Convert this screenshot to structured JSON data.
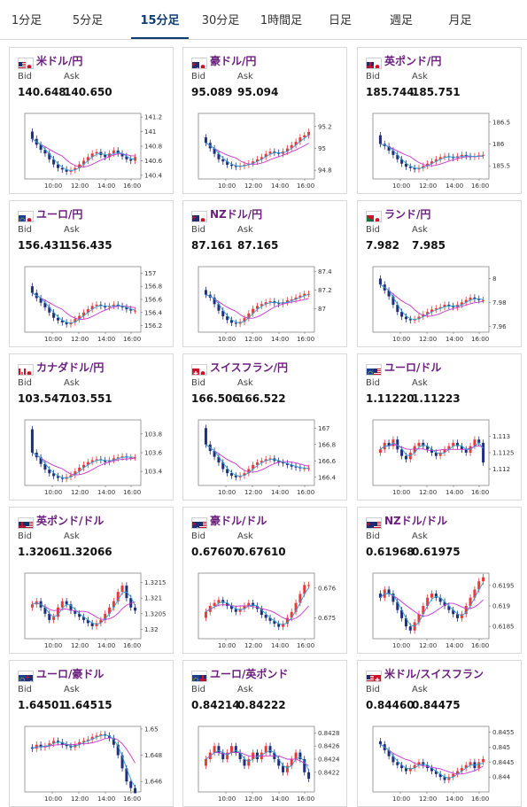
{
  "tabs": [
    {
      "label": "1分足",
      "active": false
    },
    {
      "label": "5分足",
      "active": false
    },
    {
      "label": "15分足",
      "active": true
    },
    {
      "label": "30分足",
      "active": false
    },
    {
      "label": "1時間足",
      "active": false
    },
    {
      "label": "日足",
      "active": false
    },
    {
      "label": "週足",
      "active": false
    },
    {
      "label": "月足",
      "active": false
    }
  ],
  "labels": {
    "bid": "Bid",
    "ask": "Ask"
  },
  "x_ticks": [
    "10:00",
    "12:00",
    "14:00",
    "16:00"
  ],
  "colors": {
    "up": "#e83a3a",
    "down": "#1f2f7a",
    "ma_long": "#cc33cc",
    "ma_short": "#2a9fd6",
    "title": "#6b1e7e"
  },
  "cards": [
    {
      "name": "米ドル/円",
      "flag": "us-jp",
      "bid": "140.648",
      "ask": "140.650",
      "chart_data": {
        "type": "candlestick",
        "ylim": [
          140.35,
          141.25
        ],
        "y_ticks": [
          "141.2",
          "141",
          "140.8",
          "140.6",
          "140.4"
        ],
        "y_tick_values": [
          141.2,
          141.0,
          140.8,
          140.6,
          140.4
        ],
        "close": [
          140.9,
          140.82,
          140.75,
          140.7,
          140.62,
          140.55,
          140.5,
          140.48,
          140.45,
          140.47,
          140.5,
          140.55,
          140.6,
          140.65,
          140.7,
          140.72,
          140.68,
          140.65,
          140.7,
          140.74,
          140.7,
          140.66,
          140.62,
          140.6,
          140.65
        ],
        "open_first": 141.0
      }
    },
    {
      "name": "豪ドル/円",
      "flag": "au-jp",
      "bid": "95.089",
      "ask": "95.094",
      "chart_data": {
        "type": "candlestick",
        "ylim": [
          94.72,
          95.32
        ],
        "y_ticks": [
          "95.2",
          "95",
          "94.8"
        ],
        "y_tick_values": [
          95.2,
          95.0,
          94.8
        ],
        "close": [
          95.05,
          95.0,
          94.95,
          94.9,
          94.88,
          94.85,
          94.84,
          94.83,
          94.84,
          94.85,
          94.86,
          94.88,
          94.9,
          94.92,
          94.95,
          94.97,
          94.96,
          94.95,
          94.97,
          95.0,
          95.03,
          95.06,
          95.1,
          95.12,
          95.15
        ],
        "open_first": 95.1
      }
    },
    {
      "name": "英ポンド/円",
      "flag": "gb-jp",
      "bid": "185.744",
      "ask": "185.751",
      "chart_data": {
        "type": "candlestick",
        "ylim": [
          185.2,
          186.7
        ],
        "y_ticks": [
          "186.5",
          "186",
          "185.5"
        ],
        "y_tick_values": [
          186.5,
          186.0,
          185.5
        ],
        "close": [
          186.0,
          185.95,
          185.85,
          185.75,
          185.65,
          185.55,
          185.48,
          185.45,
          185.42,
          185.45,
          185.5,
          185.55,
          185.6,
          185.65,
          185.7,
          185.72,
          185.7,
          185.68,
          185.72,
          185.75,
          185.72,
          185.7,
          185.72,
          185.74,
          185.75
        ],
        "open_first": 186.2
      }
    },
    {
      "name": "ユーロ/円",
      "flag": "eu-jp",
      "bid": "156.431",
      "ask": "156.435",
      "chart_data": {
        "type": "candlestick",
        "ylim": [
          156.1,
          157.1
        ],
        "y_ticks": [
          "157",
          "156.8",
          "156.6",
          "156.4",
          "156.2"
        ],
        "y_tick_values": [
          157.0,
          156.8,
          156.6,
          156.4,
          156.2
        ],
        "close": [
          156.7,
          156.62,
          156.55,
          156.48,
          156.4,
          156.32,
          156.28,
          156.25,
          156.22,
          156.25,
          156.3,
          156.35,
          156.4,
          156.45,
          156.5,
          156.52,
          156.5,
          156.48,
          156.5,
          156.52,
          156.5,
          156.48,
          156.45,
          156.43,
          156.43
        ],
        "open_first": 156.8
      }
    },
    {
      "name": "NZドル/円",
      "flag": "nz-jp",
      "bid": "87.161",
      "ask": "87.165",
      "chart_data": {
        "type": "candlestick",
        "ylim": [
          86.75,
          87.45
        ],
        "y_ticks": [
          "87.4",
          "87.2",
          "87"
        ],
        "y_tick_values": [
          87.4,
          87.2,
          87.0
        ],
        "close": [
          87.15,
          87.12,
          87.05,
          86.98,
          86.92,
          86.88,
          86.85,
          86.84,
          86.86,
          86.9,
          86.95,
          87.0,
          87.03,
          87.05,
          87.07,
          87.08,
          87.06,
          87.05,
          87.07,
          87.09,
          87.1,
          87.12,
          87.14,
          87.16,
          87.16
        ],
        "open_first": 87.2
      }
    },
    {
      "name": "ランド/円",
      "flag": "za-jp",
      "bid": "7.982",
      "ask": "7.985",
      "chart_data": {
        "type": "candlestick",
        "ylim": [
          7.955,
          8.01
        ],
        "y_ticks": [
          "8",
          "7.98",
          "7.96"
        ],
        "y_tick_values": [
          8.0,
          7.98,
          7.96
        ],
        "close": [
          7.995,
          7.99,
          7.985,
          7.978,
          7.972,
          7.968,
          7.966,
          7.965,
          7.966,
          7.968,
          7.97,
          7.972,
          7.974,
          7.975,
          7.976,
          7.978,
          7.977,
          7.976,
          7.978,
          7.98,
          7.982,
          7.984,
          7.983,
          7.982,
          7.982
        ],
        "open_first": 8.0
      }
    },
    {
      "name": "カナダドル/円",
      "flag": "ca-jp",
      "bid": "103.547",
      "ask": "103.551",
      "chart_data": {
        "type": "candlestick",
        "ylim": [
          103.25,
          103.95
        ],
        "y_ticks": [
          "103.8",
          "103.6",
          "103.4"
        ],
        "y_tick_values": [
          103.8,
          103.6,
          103.4
        ],
        "close": [
          103.6,
          103.55,
          103.48,
          103.42,
          103.38,
          103.35,
          103.33,
          103.32,
          103.34,
          103.36,
          103.4,
          103.44,
          103.47,
          103.5,
          103.52,
          103.53,
          103.52,
          103.5,
          103.52,
          103.54,
          103.55,
          103.56,
          103.55,
          103.55,
          103.55
        ],
        "open_first": 103.85
      }
    },
    {
      "name": "スイスフラン/円",
      "flag": "ch-jp",
      "bid": "166.506",
      "ask": "166.522",
      "chart_data": {
        "type": "candlestick",
        "ylim": [
          166.3,
          167.1
        ],
        "y_ticks": [
          "167",
          "166.8",
          "166.6",
          "166.4"
        ],
        "y_tick_values": [
          167.0,
          166.8,
          166.6,
          166.4
        ],
        "close": [
          166.8,
          166.72,
          166.65,
          166.58,
          166.5,
          166.45,
          166.42,
          166.4,
          166.42,
          166.45,
          166.5,
          166.55,
          166.58,
          166.6,
          166.62,
          166.63,
          166.6,
          166.58,
          166.57,
          166.55,
          166.53,
          166.52,
          166.51,
          166.51,
          166.51
        ],
        "open_first": 167.0
      }
    },
    {
      "name": "ユーロ/ドル",
      "flag": "eu-us",
      "bid": "1.11220",
      "ask": "1.11223",
      "chart_data": {
        "type": "candlestick",
        "ylim": [
          1.1115,
          1.1135
        ],
        "y_ticks": [
          "1.113",
          "1.1125",
          "1.112"
        ],
        "y_tick_values": [
          1.113,
          1.1125,
          1.112
        ],
        "close": [
          1.1126,
          1.1128,
          1.1127,
          1.1129,
          1.1126,
          1.1124,
          1.1123,
          1.1125,
          1.1127,
          1.1128,
          1.1127,
          1.1126,
          1.1125,
          1.1124,
          1.1125,
          1.1126,
          1.1127,
          1.1128,
          1.1127,
          1.1126,
          1.1125,
          1.1127,
          1.1129,
          1.1128,
          1.1122
        ],
        "open_first": 1.1125
      }
    },
    {
      "name": "英ポンド/ドル",
      "flag": "gb-us",
      "bid": "1.32061",
      "ask": "1.32066",
      "chart_data": {
        "type": "candlestick",
        "ylim": [
          1.3197,
          1.3218
        ],
        "y_ticks": [
          "1.3215",
          "1.321",
          "1.3205",
          "1.32"
        ],
        "y_tick_values": [
          1.3215,
          1.321,
          1.3205,
          1.32
        ],
        "close": [
          1.3208,
          1.3209,
          1.3207,
          1.3205,
          1.3203,
          1.3204,
          1.3207,
          1.3209,
          1.3208,
          1.3206,
          1.3205,
          1.3204,
          1.3203,
          1.3202,
          1.3201,
          1.3202,
          1.3203,
          1.3205,
          1.3207,
          1.3209,
          1.3212,
          1.3214,
          1.321,
          1.3207,
          1.3206
        ],
        "open_first": 1.3207
      }
    },
    {
      "name": "豪ドル/ドル",
      "flag": "au-us",
      "bid": "0.67607",
      "ask": "0.67610",
      "chart_data": {
        "type": "candlestick",
        "ylim": [
          0.6743,
          0.6765
        ],
        "y_ticks": [
          "0.676",
          "0.675"
        ],
        "y_tick_values": [
          0.676,
          0.675
        ],
        "close": [
          0.6752,
          0.6754,
          0.6755,
          0.6756,
          0.6755,
          0.6754,
          0.6753,
          0.6752,
          0.6753,
          0.6754,
          0.6755,
          0.6754,
          0.6753,
          0.6751,
          0.675,
          0.6749,
          0.6748,
          0.6747,
          0.6748,
          0.675,
          0.6752,
          0.6755,
          0.6758,
          0.6761,
          0.6761
        ],
        "open_first": 0.675
      }
    },
    {
      "name": "NZドル/ドル",
      "flag": "nz-us",
      "bid": "0.61968",
      "ask": "0.61975",
      "chart_data": {
        "type": "candlestick",
        "ylim": [
          0.6182,
          0.6198
        ],
        "y_ticks": [
          "0.6195",
          "0.619",
          "0.6185"
        ],
        "y_tick_values": [
          0.6195,
          0.619,
          0.6185
        ],
        "close": [
          0.6192,
          0.6194,
          0.6193,
          0.6191,
          0.6189,
          0.6187,
          0.6185,
          0.6184,
          0.6186,
          0.6188,
          0.619,
          0.6192,
          0.6193,
          0.6192,
          0.6191,
          0.619,
          0.6189,
          0.6188,
          0.6187,
          0.6188,
          0.619,
          0.6192,
          0.6194,
          0.6196,
          0.6197
        ],
        "open_first": 0.6193
      }
    },
    {
      "name": "ユーロ/豪ドル",
      "flag": "eu-au",
      "bid": "1.64501",
      "ask": "1.64515",
      "chart_data": {
        "type": "candlestick",
        "ylim": [
          1.6452,
          1.6502
        ],
        "y_ticks": [
          "1.65",
          "1.648",
          "1.646"
        ],
        "y_tick_values": [
          1.65,
          1.648,
          1.646
        ],
        "close": [
          1.6485,
          1.6488,
          1.6486,
          1.6487,
          1.6489,
          1.6491,
          1.649,
          1.6488,
          1.6487,
          1.6486,
          1.6488,
          1.649,
          1.6491,
          1.6492,
          1.6494,
          1.6495,
          1.6496,
          1.6495,
          1.6493,
          1.6488,
          1.648,
          1.647,
          1.646,
          1.6455,
          1.6451
        ],
        "open_first": 1.6486
      }
    },
    {
      "name": "ユーロ/英ポンド",
      "flag": "eu-gb",
      "bid": "0.84214",
      "ask": "0.84222",
      "chart_data": {
        "type": "candlestick",
        "ylim": [
          0.8419,
          0.8429
        ],
        "y_ticks": [
          "0.8428",
          "0.8426",
          "0.8424",
          "0.8422"
        ],
        "y_tick_values": [
          0.8428,
          0.8426,
          0.8424,
          0.8422
        ],
        "close": [
          0.8424,
          0.8425,
          0.8426,
          0.8425,
          0.8424,
          0.8425,
          0.8426,
          0.8425,
          0.8424,
          0.8423,
          0.8424,
          0.8425,
          0.8424,
          0.8425,
          0.8426,
          0.8425,
          0.8424,
          0.8423,
          0.8422,
          0.8423,
          0.8424,
          0.8425,
          0.8424,
          0.8422,
          0.8421
        ],
        "open_first": 0.8423
      }
    },
    {
      "name": "米ドル/スイスフラン",
      "flag": "us-ch",
      "bid": "0.84460",
      "ask": "0.84475",
      "chart_data": {
        "type": "candlestick",
        "ylim": [
          0.8435,
          0.8457
        ],
        "y_ticks": [
          "0.8455",
          "0.845",
          "0.8445",
          "0.844"
        ],
        "y_tick_values": [
          0.8455,
          0.845,
          0.8445,
          0.844
        ],
        "close": [
          0.8451,
          0.8449,
          0.8447,
          0.8445,
          0.8444,
          0.8443,
          0.8442,
          0.8443,
          0.8444,
          0.8445,
          0.8444,
          0.8443,
          0.8442,
          0.8441,
          0.844,
          0.8439,
          0.844,
          0.8441,
          0.8442,
          0.8443,
          0.8444,
          0.8445,
          0.8443,
          0.8445,
          0.8446
        ],
        "open_first": 0.8452
      }
    }
  ]
}
